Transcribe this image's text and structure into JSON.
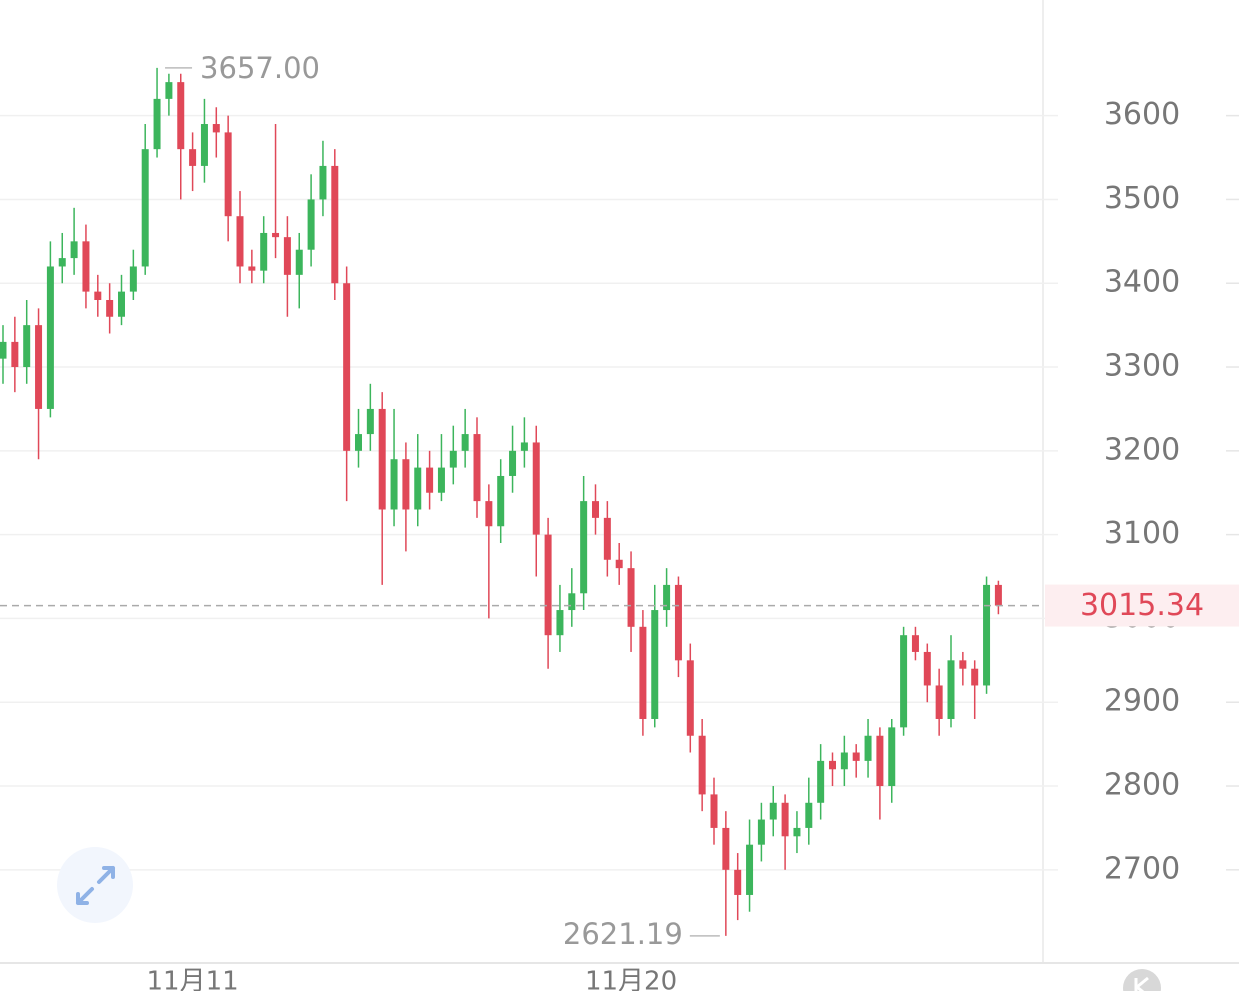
{
  "chart_data": {
    "type": "candlestick",
    "categories": [
      null,
      null,
      null,
      null,
      null,
      null,
      null,
      null,
      null,
      null,
      null,
      null,
      null,
      null,
      null,
      null,
      "11月11",
      null,
      null,
      null,
      null,
      null,
      null,
      null,
      null,
      null,
      null,
      null,
      null,
      null,
      null,
      null,
      null,
      null,
      null,
      null,
      null,
      null,
      null,
      null,
      null,
      null,
      null,
      null,
      null,
      null,
      null,
      null,
      null,
      null,
      null,
      null,
      null,
      "11月20",
      null,
      null,
      null,
      null,
      null,
      null,
      null,
      null,
      null,
      null,
      null,
      null,
      null,
      null,
      null,
      null,
      null,
      null,
      null,
      null,
      null,
      null,
      null,
      null,
      null,
      null,
      null,
      null,
      null,
      null,
      null
    ],
    "open": [
      3310,
      3330,
      3300,
      3350,
      3250,
      3420,
      3430,
      3450,
      3390,
      3380,
      3360,
      3390,
      3420,
      3560,
      3620,
      3640,
      3560,
      3540,
      3590,
      3580,
      3480,
      3420,
      3415,
      3460,
      3455,
      3410,
      3440,
      3500,
      3540,
      3400,
      3200,
      3220,
      3250,
      3130,
      3190,
      3130,
      3180,
      3150,
      3180,
      3200,
      3220,
      3140,
      3110,
      3170,
      3200,
      3210,
      3100,
      2980,
      3010,
      3030,
      3140,
      3120,
      3070,
      3060,
      2990,
      2880,
      3010,
      3040,
      2950,
      2860,
      2790,
      2750,
      2700,
      2670,
      2730,
      2760,
      2780,
      2740,
      2750,
      2780,
      2830,
      2820,
      2840,
      2830,
      2860,
      2800,
      2870,
      2980,
      2960,
      2920,
      2880,
      2950,
      2940,
      2920,
      3040
    ],
    "high": [
      3350,
      3360,
      3380,
      3370,
      3450,
      3460,
      3490,
      3470,
      3410,
      3400,
      3410,
      3440,
      3590,
      3657,
      3650,
      3650,
      3580,
      3620,
      3610,
      3600,
      3510,
      3440,
      3480,
      3590,
      3480,
      3460,
      3530,
      3570,
      3560,
      3420,
      3250,
      3280,
      3270,
      3250,
      3210,
      3220,
      3200,
      3220,
      3230,
      3250,
      3240,
      3160,
      3190,
      3230,
      3240,
      3230,
      3120,
      3040,
      3060,
      3170,
      3160,
      3140,
      3090,
      3080,
      3010,
      3040,
      3060,
      3050,
      2970,
      2880,
      2810,
      2770,
      2720,
      2760,
      2780,
      2800,
      2790,
      2770,
      2810,
      2850,
      2840,
      2860,
      2850,
      2880,
      2870,
      2880,
      2990,
      2990,
      2970,
      2940,
      2980,
      2960,
      2950,
      3050,
      3045
    ],
    "low": [
      3280,
      3270,
      3280,
      3190,
      3240,
      3400,
      3410,
      3370,
      3360,
      3340,
      3350,
      3380,
      3410,
      3550,
      3600,
      3500,
      3510,
      3520,
      3550,
      3450,
      3400,
      3400,
      3400,
      3430,
      3360,
      3370,
      3420,
      3480,
      3380,
      3140,
      3180,
      3200,
      3040,
      3110,
      3080,
      3110,
      3130,
      3140,
      3160,
      3180,
      3120,
      3000,
      3090,
      3150,
      3180,
      3050,
      2940,
      2960,
      2990,
      3010,
      3100,
      3050,
      3040,
      2960,
      2860,
      2870,
      2990,
      2930,
      2840,
      2770,
      2730,
      2621.19,
      2640,
      2650,
      2710,
      2740,
      2700,
      2720,
      2730,
      2760,
      2800,
      2800,
      2810,
      2810,
      2760,
      2780,
      2860,
      2950,
      2900,
      2860,
      2870,
      2920,
      2880,
      2910,
      3005
    ],
    "close": [
      3330,
      3300,
      3350,
      3250,
      3420,
      3430,
      3450,
      3390,
      3380,
      3360,
      3390,
      3420,
      3560,
      3620,
      3640,
      3560,
      3540,
      3590,
      3580,
      3480,
      3420,
      3415,
      3460,
      3455,
      3410,
      3440,
      3500,
      3540,
      3400,
      3200,
      3220,
      3250,
      3130,
      3190,
      3130,
      3180,
      3150,
      3180,
      3200,
      3220,
      3140,
      3110,
      3170,
      3200,
      3210,
      3100,
      2980,
      3010,
      3030,
      3140,
      3120,
      3070,
      3060,
      2990,
      2880,
      3010,
      3040,
      2950,
      2860,
      2790,
      2750,
      2700,
      2670,
      2730,
      2760,
      2780,
      2740,
      2750,
      2780,
      2830,
      2820,
      2840,
      2830,
      2860,
      2800,
      2870,
      2980,
      2960,
      2920,
      2880,
      2950,
      2940,
      2920,
      3040,
      3015.34
    ],
    "up_color": "#3cb55c",
    "down_color": "#e04858",
    "ylim": [
      2590,
      3738
    ],
    "yticks": [
      2700,
      2800,
      2900,
      3000,
      3100,
      3200,
      3300,
      3400,
      3500,
      3600
    ],
    "grid": true,
    "high_label": {
      "value": 3657,
      "label": "3657.00"
    },
    "low_label": {
      "value": 2621.19,
      "label": "2621.19"
    }
  }
}
